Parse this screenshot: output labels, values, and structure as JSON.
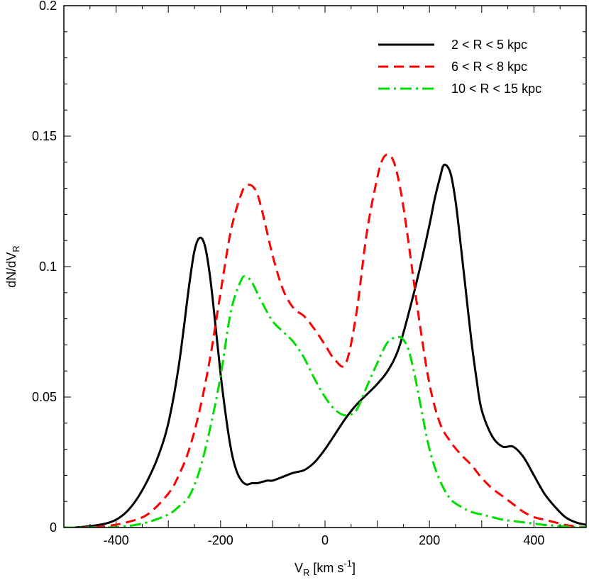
{
  "chart_data": {
    "type": "line",
    "title": "",
    "xlabel": {
      "main": "V",
      "sub": "R",
      "unit_pre": " [km s",
      "unit_sup": "-1",
      "unit_post": "]"
    },
    "ylabel": {
      "main": "dN/dV",
      "sub": "R"
    },
    "xlim": [
      -500,
      500
    ],
    "ylim": [
      0,
      0.2
    ],
    "xticks": [
      -400,
      -200,
      0,
      200,
      400
    ],
    "xtick_labels": [
      "-400",
      "-200",
      "0",
      "200",
      "400"
    ],
    "yticks": [
      0,
      0.05,
      0.1,
      0.15,
      0.2
    ],
    "ytick_labels": [
      "0",
      "0.05",
      "0.1",
      "0.15",
      "0.2"
    ],
    "grid": false,
    "legend_position": "top-right",
    "series": [
      {
        "name": "2 < R < 5 kpc",
        "color": "#000000",
        "style": "solid",
        "x": [
          -500,
          -480,
          -460,
          -440,
          -420,
          -400,
          -380,
          -360,
          -340,
          -320,
          -300,
          -280,
          -260,
          -250,
          -240,
          -230,
          -220,
          -210,
          -200,
          -190,
          -180,
          -170,
          -160,
          -150,
          -140,
          -130,
          -120,
          -110,
          -100,
          -80,
          -60,
          -40,
          -20,
          0,
          20,
          40,
          60,
          80,
          100,
          120,
          140,
          160,
          180,
          200,
          210,
          220,
          228,
          240,
          250,
          260,
          270,
          280,
          290,
          300,
          320,
          340,
          360,
          380,
          400,
          420,
          440,
          460,
          480,
          500
        ],
        "y": [
          0,
          0,
          0.0003,
          0.0008,
          0.0015,
          0.003,
          0.006,
          0.011,
          0.018,
          0.027,
          0.04,
          0.062,
          0.093,
          0.106,
          0.111,
          0.108,
          0.096,
          0.078,
          0.059,
          0.043,
          0.03,
          0.022,
          0.018,
          0.0165,
          0.017,
          0.017,
          0.0175,
          0.018,
          0.018,
          0.0195,
          0.021,
          0.022,
          0.025,
          0.03,
          0.036,
          0.042,
          0.047,
          0.051,
          0.055,
          0.06,
          0.068,
          0.082,
          0.098,
          0.116,
          0.126,
          0.134,
          0.139,
          0.136,
          0.125,
          0.108,
          0.09,
          0.072,
          0.057,
          0.045,
          0.035,
          0.031,
          0.031,
          0.027,
          0.02,
          0.013,
          0.008,
          0.004,
          0.002,
          0.001
        ]
      },
      {
        "name": "6 < R < 8 kpc",
        "color": "#ff0000",
        "style": "dashed",
        "x": [
          -500,
          -460,
          -420,
          -380,
          -340,
          -300,
          -280,
          -260,
          -240,
          -220,
          -200,
          -180,
          -160,
          -150,
          -140,
          -130,
          -120,
          -100,
          -80,
          -60,
          -40,
          -20,
          0,
          20,
          40,
          60,
          80,
          100,
          110,
          120,
          130,
          140,
          150,
          160,
          180,
          200,
          220,
          240,
          260,
          280,
          300,
          320,
          340,
          360,
          380,
          400,
          420,
          440,
          460,
          480,
          500
        ],
        "y": [
          0,
          0,
          0.0005,
          0.002,
          0.005,
          0.013,
          0.02,
          0.03,
          0.045,
          0.065,
          0.09,
          0.114,
          0.128,
          0.131,
          0.131,
          0.128,
          0.121,
          0.104,
          0.091,
          0.084,
          0.081,
          0.076,
          0.07,
          0.064,
          0.063,
          0.082,
          0.113,
          0.134,
          0.141,
          0.143,
          0.141,
          0.134,
          0.123,
          0.109,
          0.08,
          0.055,
          0.04,
          0.033,
          0.028,
          0.024,
          0.019,
          0.015,
          0.012,
          0.009,
          0.006,
          0.004,
          0.003,
          0.002,
          0.001,
          0.0005,
          0
        ]
      },
      {
        "name": "10 < R < 15 kpc",
        "color": "#00dd00",
        "style": "dashdot",
        "x": [
          -500,
          -460,
          -420,
          -380,
          -340,
          -300,
          -280,
          -260,
          -240,
          -220,
          -200,
          -180,
          -160,
          -150,
          -140,
          -130,
          -120,
          -100,
          -80,
          -60,
          -40,
          -20,
          0,
          20,
          40,
          60,
          80,
          100,
          120,
          140,
          150,
          160,
          170,
          180,
          200,
          220,
          240,
          260,
          280,
          300,
          320,
          340,
          360,
          380,
          400,
          420,
          440,
          460,
          480,
          500
        ],
        "y": [
          0,
          0,
          0,
          0.0005,
          0.002,
          0.005,
          0.008,
          0.012,
          0.022,
          0.038,
          0.058,
          0.083,
          0.095,
          0.096,
          0.094,
          0.09,
          0.086,
          0.079,
          0.075,
          0.071,
          0.065,
          0.057,
          0.05,
          0.045,
          0.043,
          0.045,
          0.054,
          0.063,
          0.071,
          0.073,
          0.072,
          0.068,
          0.06,
          0.05,
          0.03,
          0.018,
          0.011,
          0.008,
          0.006,
          0.005,
          0.004,
          0.003,
          0.0025,
          0.002,
          0.0015,
          0.001,
          0.0007,
          0.0004,
          0.0002,
          0
        ]
      }
    ]
  }
}
